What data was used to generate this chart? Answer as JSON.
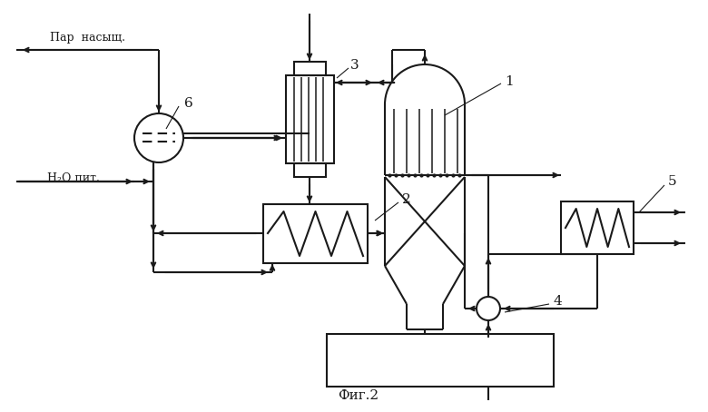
{
  "title": "Фиг.2",
  "bg_color": "#ffffff",
  "line_color": "#1a1a1a",
  "label_1": "1",
  "label_2": "2",
  "label_3": "3",
  "label_4": "4",
  "label_5": "5",
  "label_6": "6",
  "text_par": "Пар  насыщ.",
  "text_h2o": "H₂O пит.",
  "figsize": [
    7.8,
    4.54
  ],
  "dpi": 100
}
